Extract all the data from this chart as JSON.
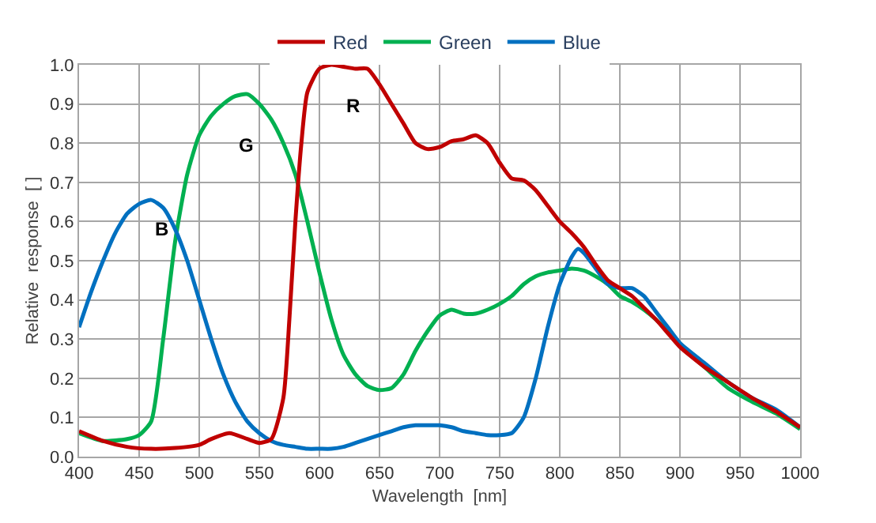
{
  "chart_data": {
    "type": "line",
    "xlabel": "Wavelength  [nm]",
    "ylabel": "Relative  response  [ ]",
    "xlim": [
      400,
      1000
    ],
    "ylim": [
      0,
      1
    ],
    "xticks": [
      400,
      450,
      500,
      550,
      600,
      650,
      700,
      750,
      800,
      850,
      900,
      950,
      1000
    ],
    "yticks": [
      {
        "value": 0,
        "label": "0.0"
      },
      0.1,
      0.2,
      0.3,
      0.4,
      0.5,
      0.6,
      0.7,
      0.8,
      0.9,
      {
        "value": 1,
        "label": "1.0"
      }
    ],
    "grid": true,
    "legend": "top",
    "marker": "none",
    "line_style": "solid",
    "annotations": [
      "B",
      "G",
      "R"
    ],
    "series": [
      {
        "name": "Red",
        "color": "#c00000",
        "x": [
          400,
          420,
          440,
          460,
          480,
          500,
          510,
          525,
          540,
          550,
          560,
          570,
          575,
          580,
          585,
          590,
          600,
          610,
          620,
          630,
          640,
          650,
          660,
          670,
          680,
          690,
          700,
          710,
          720,
          730,
          740,
          750,
          760,
          770,
          780,
          790,
          800,
          810,
          820,
          830,
          840,
          850,
          860,
          870,
          880,
          890,
          900,
          920,
          940,
          960,
          980,
          1000
        ],
        "values": [
          0.065,
          0.04,
          0.025,
          0.02,
          0.022,
          0.03,
          0.045,
          0.06,
          0.045,
          0.035,
          0.045,
          0.15,
          0.35,
          0.6,
          0.8,
          0.93,
          0.99,
          1.0,
          0.995,
          0.99,
          0.99,
          0.95,
          0.9,
          0.85,
          0.8,
          0.785,
          0.79,
          0.805,
          0.81,
          0.82,
          0.8,
          0.75,
          0.71,
          0.705,
          0.68,
          0.64,
          0.6,
          0.57,
          0.535,
          0.49,
          0.45,
          0.43,
          0.41,
          0.38,
          0.35,
          0.315,
          0.28,
          0.23,
          0.19,
          0.15,
          0.115,
          0.075
        ]
      },
      {
        "name": "Green",
        "color": "#00b050",
        "x": [
          400,
          420,
          440,
          450,
          460,
          470,
          480,
          490,
          500,
          510,
          520,
          530,
          540,
          550,
          560,
          570,
          580,
          590,
          600,
          610,
          620,
          630,
          640,
          650,
          660,
          670,
          680,
          690,
          700,
          710,
          720,
          730,
          740,
          750,
          760,
          770,
          780,
          790,
          800,
          810,
          820,
          830,
          840,
          850,
          860,
          870,
          880,
          890,
          900,
          920,
          940,
          960,
          980,
          1000
        ],
        "values": [
          0.06,
          0.04,
          0.045,
          0.055,
          0.09,
          0.3,
          0.55,
          0.72,
          0.82,
          0.87,
          0.9,
          0.92,
          0.925,
          0.9,
          0.86,
          0.8,
          0.72,
          0.6,
          0.47,
          0.35,
          0.26,
          0.21,
          0.18,
          0.17,
          0.175,
          0.21,
          0.27,
          0.32,
          0.36,
          0.375,
          0.365,
          0.365,
          0.375,
          0.39,
          0.41,
          0.44,
          0.46,
          0.47,
          0.475,
          0.48,
          0.475,
          0.46,
          0.44,
          0.41,
          0.395,
          0.375,
          0.35,
          0.32,
          0.285,
          0.23,
          0.175,
          0.14,
          0.11,
          0.07
        ]
      },
      {
        "name": "Blue",
        "color": "#0070c0",
        "x": [
          400,
          410,
          420,
          430,
          440,
          450,
          460,
          470,
          480,
          490,
          500,
          510,
          520,
          530,
          540,
          550,
          560,
          570,
          580,
          590,
          600,
          610,
          620,
          630,
          640,
          650,
          660,
          670,
          680,
          690,
          700,
          710,
          720,
          730,
          740,
          750,
          760,
          770,
          780,
          790,
          800,
          810,
          815,
          820,
          830,
          840,
          850,
          860,
          870,
          880,
          890,
          900,
          920,
          940,
          960,
          980,
          1000
        ],
        "values": [
          0.33,
          0.42,
          0.5,
          0.57,
          0.62,
          0.645,
          0.655,
          0.635,
          0.58,
          0.5,
          0.4,
          0.3,
          0.21,
          0.14,
          0.09,
          0.06,
          0.04,
          0.03,
          0.025,
          0.02,
          0.02,
          0.02,
          0.025,
          0.035,
          0.045,
          0.055,
          0.065,
          0.075,
          0.08,
          0.08,
          0.08,
          0.075,
          0.065,
          0.06,
          0.055,
          0.055,
          0.06,
          0.1,
          0.2,
          0.33,
          0.44,
          0.51,
          0.53,
          0.52,
          0.48,
          0.44,
          0.43,
          0.43,
          0.41,
          0.37,
          0.33,
          0.29,
          0.24,
          0.19,
          0.15,
          0.12,
          0.075
        ]
      }
    ]
  }
}
